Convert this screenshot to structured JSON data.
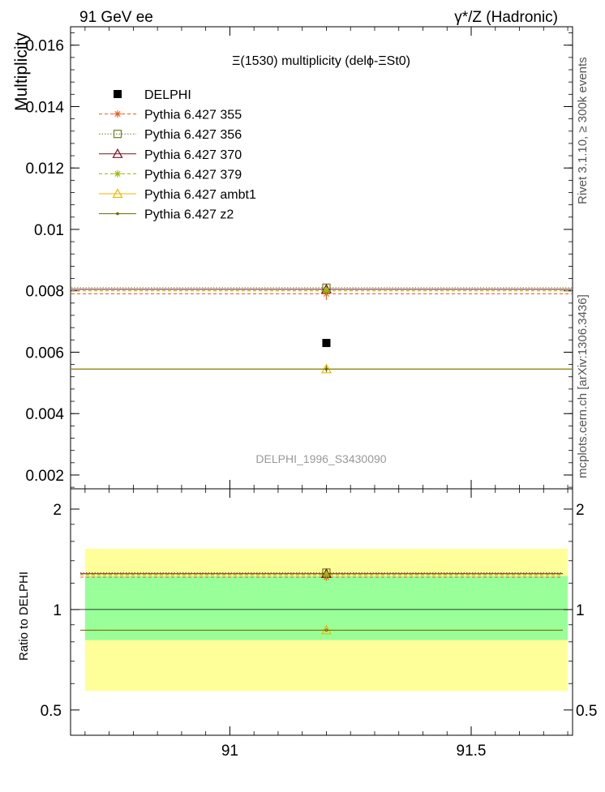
{
  "header": {
    "left": "91 GeV ee",
    "right": "γ*/Z (Hadronic)"
  },
  "side_text": {
    "rivet": "Rivet 3.1.10, ≥ 300k events",
    "mcplots": "mcplots.cern.ch [arXiv:1306.3436]"
  },
  "chart_data": [
    {
      "type": "scatter",
      "title": "Ξ(1530) multiplicity (delϕ-ΞSt0)",
      "ylabel": "Multiplicity",
      "xlim": [
        90.67,
        91.71
      ],
      "ylim": [
        0.00155,
        0.0166
      ],
      "yticks": [
        0.002,
        0.004,
        0.006,
        0.008,
        0.01,
        0.012,
        0.014,
        0.016
      ],
      "ytick_labels": [
        "0.002",
        "0.004",
        "0.006",
        "0.008",
        "0.01",
        "0.012",
        "0.014",
        "0.016"
      ],
      "watermark": "DELPHI_1996_S3430090",
      "legend_position": "top-left",
      "x": [
        91.2
      ],
      "series": [
        {
          "name": "DELPHI",
          "values": [
            0.0063
          ],
          "color": "#000000",
          "marker": "filled-square",
          "line": "none"
        },
        {
          "name": "Pythia 6.427 355",
          "values": [
            0.0079
          ],
          "err": 0.0002,
          "color": "#ee5a1c",
          "marker": "star",
          "line": "dashed"
        },
        {
          "name": "Pythia 6.427 356",
          "values": [
            0.0081
          ],
          "err": 5e-05,
          "color": "#6b7d1e",
          "marker": "open-square",
          "line": "dotted"
        },
        {
          "name": "Pythia 6.427 370",
          "values": [
            0.00805
          ],
          "err": 5e-05,
          "color": "#7a1020",
          "marker": "open-triangle",
          "line": "solid"
        },
        {
          "name": "Pythia 6.427 379",
          "values": [
            0.008
          ],
          "err": 5e-05,
          "color": "#9ab800",
          "marker": "star",
          "line": "dashed"
        },
        {
          "name": "Pythia 6.427 ambt1",
          "values": [
            0.00545
          ],
          "err": 0.0001,
          "color": "#f0b400",
          "marker": "open-triangle",
          "line": "solid"
        },
        {
          "name": "Pythia 6.427 z2",
          "values": [
            0.00545
          ],
          "err": 0.0001,
          "color": "#6b6b00",
          "marker": "dot",
          "line": "solid"
        }
      ]
    },
    {
      "type": "scatter",
      "ylabel": "Ratio to DELPHI",
      "xlim": [
        90.67,
        91.71
      ],
      "ylim": [
        0.42,
        2.3
      ],
      "log_y": true,
      "yticks": [
        0.5,
        1,
        2
      ],
      "ytick_labels": [
        "0.5",
        "1",
        "2"
      ],
      "xticks": [
        91,
        91.5
      ],
      "xtick_labels": [
        "91",
        "91.5"
      ],
      "bands": [
        {
          "name": "stat+syst",
          "low": 0.57,
          "high": 1.52,
          "color": "#ffff99"
        },
        {
          "name": "stat",
          "low": 0.81,
          "high": 1.26,
          "color": "#99ff99"
        }
      ],
      "x": [
        91.2
      ],
      "series": [
        {
          "name": "Pythia 6.427 355",
          "values": [
            1.25
          ],
          "color": "#ee5a1c"
        },
        {
          "name": "Pythia 6.427 356",
          "values": [
            1.29
          ],
          "color": "#6b7d1e"
        },
        {
          "name": "Pythia 6.427 370",
          "values": [
            1.28
          ],
          "color": "#7a1020"
        },
        {
          "name": "Pythia 6.427 379",
          "values": [
            1.27
          ],
          "color": "#9ab800"
        },
        {
          "name": "Pythia 6.427 ambt1",
          "values": [
            0.867
          ],
          "color": "#f0b400"
        },
        {
          "name": "Pythia 6.427 z2",
          "values": [
            0.867
          ],
          "color": "#6b6b00"
        }
      ]
    }
  ]
}
